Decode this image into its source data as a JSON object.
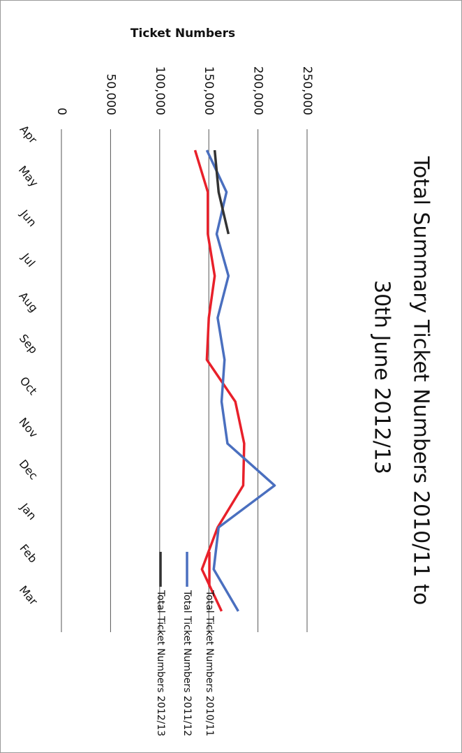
{
  "chart_data": {
    "type": "line",
    "title": "Total Summary Ticket Numbers 2010/11 to",
    "subtitle": "30th June 2012/13",
    "y_label": "Ticket Numbers",
    "categories": [
      "Apr",
      "May",
      "Jun",
      "Jul",
      "Aug",
      "Sep",
      "Oct",
      "Nov",
      "Dec",
      "Jan",
      "Feb",
      "Mar"
    ],
    "series": [
      {
        "name": "Total Ticket Numbers 2010/11",
        "color": "#e8202a",
        "values": [
          136000,
          149000,
          149000,
          156000,
          150000,
          148000,
          177000,
          186000,
          185000,
          159000,
          143000,
          163000
        ]
      },
      {
        "name": "Total Ticket Numbers 2011/12",
        "color": "#4a6fbf",
        "values": [
          148000,
          168000,
          158000,
          170000,
          159000,
          166000,
          163000,
          169000,
          217000,
          160000,
          155000,
          180000
        ]
      },
      {
        "name": "Total Ticket Numbers 2012/13",
        "color": "#333333",
        "values": [
          156000,
          160000,
          170000,
          null,
          null,
          null,
          null,
          null,
          null,
          null,
          null,
          null
        ]
      }
    ],
    "ylim": [
      0,
      250000
    ],
    "yticks": [
      0,
      {
        "value": 50000,
        "label": "50,000"
      },
      {
        "value": 100000,
        "label": "100,000"
      },
      {
        "value": 150000,
        "label": "150,000"
      },
      {
        "value": 200000,
        "label": "200,000"
      },
      {
        "value": 250000,
        "label": "250,000"
      }
    ],
    "grid": true
  }
}
